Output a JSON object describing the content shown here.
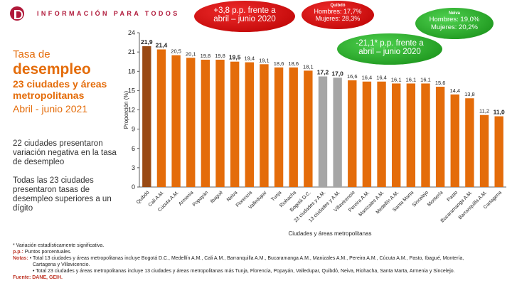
{
  "header": {
    "brand_text": "INFORMACIÓN PARA TODOS"
  },
  "titles": {
    "line1": "Tasa de",
    "line2": "desempleo",
    "line3": "23 ciudades y áreas metropolitanas",
    "line4": "Abril - junio 2021"
  },
  "side_notes": {
    "note1": "22 ciudades presentaron variación negativa en la tasa de desempleo",
    "note2": "Todas las 23 ciudades presentaron tasas de desempleo superiores a un dígito"
  },
  "callouts": {
    "red_main": {
      "line1": "+3,8 p.p. frente a",
      "line2": "abril – junio 2020"
    },
    "red_city": {
      "title": "Quibdó",
      "line1": "Hombres: 17,7%",
      "line2": "Mujeres: 28,3%"
    },
    "green_main": {
      "line1": "-21,1* p.p. frente a",
      "line2": "abril – junio 2020"
    },
    "green_city": {
      "title": "Neiva",
      "line1": "Hombres: 19,0%",
      "line2": "Mujeres: 20,2%"
    }
  },
  "colors": {
    "bar_default": "#e46c0a",
    "bar_highlight": "#9a4a14",
    "bar_aggregate": "#a6a6a6",
    "accent": "#b0193a"
  },
  "chart_data": {
    "type": "bar",
    "ylabel": "Proporción (%)",
    "xlabel": "Ciudades y áreas metropolitanas",
    "ylim": [
      0,
      24
    ],
    "yticks": [
      0,
      3,
      6,
      9,
      12,
      15,
      18,
      21,
      24
    ],
    "grid": false,
    "categories": [
      "Quibdó",
      "Cali A.M.",
      "Cúcuta A.M.",
      "Armenia",
      "Popayán",
      "Ibagué",
      "Neiva",
      "Florencia",
      "Valledupar",
      "Tunja",
      "Riohacha",
      "Bogotá D.C.",
      "23 ciudades y A.M.",
      "13 ciudades y A.M.",
      "Villavicencio",
      "Pereira A.M.",
      "Manizales A.M.",
      "Medellín A.M.",
      "Santa Marta",
      "Sincelejo",
      "Montería",
      "Pasto",
      "Bucaramanga A.M.",
      "Barranquilla A.M.",
      "Cartagena"
    ],
    "values": [
      21.9,
      21.4,
      20.5,
      20.1,
      19.8,
      19.8,
      19.5,
      19.4,
      19.1,
      18.6,
      18.6,
      18.1,
      17.2,
      17.0,
      16.6,
      16.4,
      16.4,
      16.1,
      16.1,
      16.1,
      15.6,
      14.4,
      13.8,
      11.2,
      11.0
    ],
    "value_labels": [
      "21,9",
      "21,4",
      "20,5",
      "20,1",
      "19,8",
      "19,8",
      "19,5",
      "19,4",
      "19,1",
      "18,6",
      "18,6",
      "18,1",
      "17,2",
      "17,0",
      "16,6",
      "16,4",
      "16,4",
      "16,1",
      "16,1",
      "16,1",
      "15,6",
      "14,4",
      "13,8",
      "11,2",
      "11,0"
    ],
    "bold_labels": [
      true,
      true,
      false,
      false,
      false,
      false,
      true,
      false,
      false,
      false,
      false,
      false,
      true,
      true,
      false,
      false,
      false,
      false,
      false,
      false,
      false,
      false,
      false,
      false,
      true
    ],
    "bar_kind": [
      "highlight",
      "default",
      "default",
      "default",
      "default",
      "default",
      "default",
      "default",
      "default",
      "default",
      "default",
      "default",
      "aggregate",
      "aggregate",
      "default",
      "default",
      "default",
      "default",
      "default",
      "default",
      "default",
      "default",
      "default",
      "default",
      "default"
    ]
  },
  "footnotes": {
    "asterisk": "* Variación estadísticamente significativa.",
    "pp_label": "p.p.:",
    "pp_text": "Puntos porcentuales.",
    "notas_label": "Notas:",
    "nota1a": "• Total 13 ciudades y áreas metropolitanas incluye Bogotá D.C., Medellín A.M., Cali A.M., Barranquilla A.M., Bucaramanga A.M., Manizales A.M., Pereira A.M., Cúcuta A.M., Pasto, Ibagué, Montería,",
    "nota1b": "Cartagena y Villavicencio.",
    "nota2": "• Total 23 ciudades y áreas metropolitanas incluye 13 ciudades y áreas metropolitanas más Tunja, Florencia, Popayán, Valledupar, Quibdó, Neiva, Riohacha, Santa Marta, Armenia y Sincelejo.",
    "fuente": "Fuente: DANE, GEIH."
  }
}
